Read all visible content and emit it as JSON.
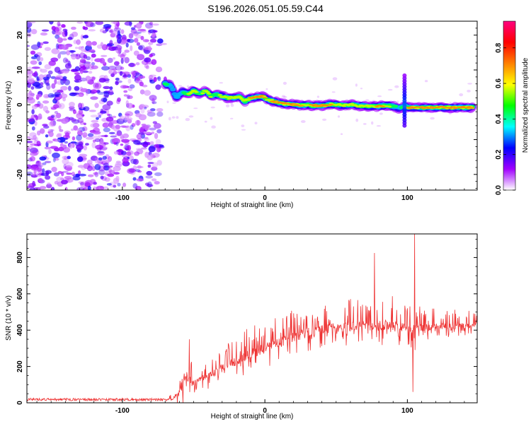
{
  "page": {
    "title": "S196.2026.051.05.59.C44"
  },
  "colors": {
    "frame": "#000000",
    "snr_line": "#ee3333",
    "background": "#ffffff"
  },
  "chart_data": [
    {
      "type": "heatmap",
      "name": "spectrogram",
      "title": "S196.2026.051.05.59.C44",
      "xlabel": "Height of straight line (km)",
      "ylabel": "Frequency (Hz)",
      "xlim": [
        -167,
        149
      ],
      "ylim": [
        -24.5,
        24
      ],
      "xticks": [
        -100,
        0,
        100
      ],
      "xtick_labels": [
        "-100",
        "0",
        "100"
      ],
      "yticks": [
        20,
        10,
        0,
        -10,
        -20
      ],
      "ytick_labels": [
        "20",
        "10",
        "0",
        "-10",
        "-20"
      ],
      "colorbar": {
        "label": "Normalized spectral amplitude",
        "range": [
          0,
          0.95
        ],
        "ticks": [
          0.0,
          0.2,
          0.4,
          0.6,
          0.8
        ],
        "tick_labels": [
          "0.0",
          "0.2",
          "0.4",
          "0.6",
          "0.8"
        ],
        "colormap": [
          "#ffffff",
          "#a000ff",
          "#0000ff",
          "#00ffff",
          "#00ff00",
          "#ffff00",
          "#ff8000",
          "#ff0000",
          "#ff0080"
        ]
      },
      "noise_region_x": [
        -167,
        -70
      ],
      "signal_track": {
        "x": [
          -70,
          -66,
          -62,
          -58,
          -54,
          -50,
          -46,
          -42,
          -38,
          -34,
          -30,
          -26,
          -22,
          -18,
          -14,
          -10,
          -6,
          -2,
          2,
          6,
          10,
          14,
          18,
          22,
          26,
          30,
          34,
          38,
          42,
          46,
          50,
          54,
          58,
          62,
          66,
          70,
          74,
          78,
          82,
          86,
          90,
          94,
          98,
          102,
          106,
          110,
          114,
          118,
          122,
          126,
          130,
          134,
          138,
          142,
          146
        ],
        "y": [
          6.0,
          5.5,
          2.0,
          3.8,
          3.0,
          4.2,
          3.0,
          4.0,
          2.5,
          3.0,
          2.5,
          2.0,
          2.0,
          2.5,
          1.0,
          2.0,
          2.2,
          2.5,
          1.5,
          1.0,
          0.6,
          0.2,
          0.2,
          0.0,
          -0.2,
          0.0,
          -0.3,
          -0.2,
          -0.3,
          0.2,
          0.0,
          -0.2,
          0.0,
          0.0,
          -0.3,
          -0.3,
          -0.4,
          -0.5,
          -0.3,
          -0.2,
          -0.4,
          -1.0,
          -0.5,
          -0.8,
          -0.8,
          -0.8,
          -0.8,
          -0.8,
          -0.8,
          -0.8,
          -0.8,
          -0.8,
          -0.8,
          -0.8,
          -0.8
        ],
        "amplitude": [
          0.5,
          0.3,
          0.35,
          0.4,
          0.55,
          0.6,
          0.5,
          0.6,
          0.55,
          0.5,
          0.6,
          0.65,
          0.7,
          0.6,
          0.55,
          0.75,
          0.7,
          0.8,
          0.65,
          0.75,
          0.85,
          0.85,
          0.8,
          0.7,
          0.7,
          0.65,
          0.75,
          0.7,
          0.7,
          0.75,
          0.6,
          0.7,
          0.65,
          0.7,
          0.6,
          0.6,
          0.55,
          0.7,
          0.75,
          0.6,
          0.5,
          0.35,
          0.6,
          0.8,
          0.85,
          0.85,
          0.85,
          0.85,
          0.85,
          0.85,
          0.85,
          0.85,
          0.85,
          0.85,
          0.85
        ]
      },
      "vertical_spike": {
        "x": 98,
        "y_range": [
          -6,
          9
        ]
      }
    },
    {
      "type": "line",
      "name": "snr",
      "xlabel": "Height of straight line (km)",
      "ylabel": "SNR (10 * v/v)",
      "xlim": [
        -167,
        149
      ],
      "ylim": [
        0,
        930
      ],
      "xticks": [
        -100,
        0,
        100
      ],
      "xtick_labels": [
        "-100",
        "0",
        "100"
      ],
      "yticks": [
        0,
        200,
        400,
        600,
        800
      ],
      "ytick_labels": [
        "0",
        "200",
        "400",
        "600",
        "800"
      ],
      "envelope": {
        "x": [
          -167,
          -70,
          -65,
          -60,
          -57,
          -55,
          -50,
          -45,
          -40,
          -30,
          -20,
          -10,
          0,
          10,
          20,
          30,
          40,
          50,
          60,
          70,
          80,
          90,
          95,
          100,
          103,
          105,
          110,
          120,
          130,
          140,
          149
        ],
        "baseline": [
          18,
          18,
          20,
          60,
          120,
          150,
          110,
          130,
          150,
          190,
          230,
          270,
          300,
          330,
          360,
          385,
          405,
          415,
          420,
          425,
          425,
          430,
          420,
          410,
          400,
          400,
          410,
          420,
          420,
          425,
          430
        ],
        "spike_height": [
          12,
          12,
          30,
          130,
          230,
          150,
          100,
          90,
          110,
          130,
          140,
          150,
          160,
          160,
          150,
          150,
          140,
          150,
          160,
          170,
          180,
          170,
          160,
          120,
          180,
          200,
          120,
          100,
          100,
          90,
          90
        ]
      },
      "notable_peaks": [
        {
          "x": -53,
          "y": 350
        },
        {
          "x": 77,
          "y": 825
        },
        {
          "x": 105,
          "y": 930
        },
        {
          "x": 104,
          "y": 60
        }
      ]
    }
  ]
}
